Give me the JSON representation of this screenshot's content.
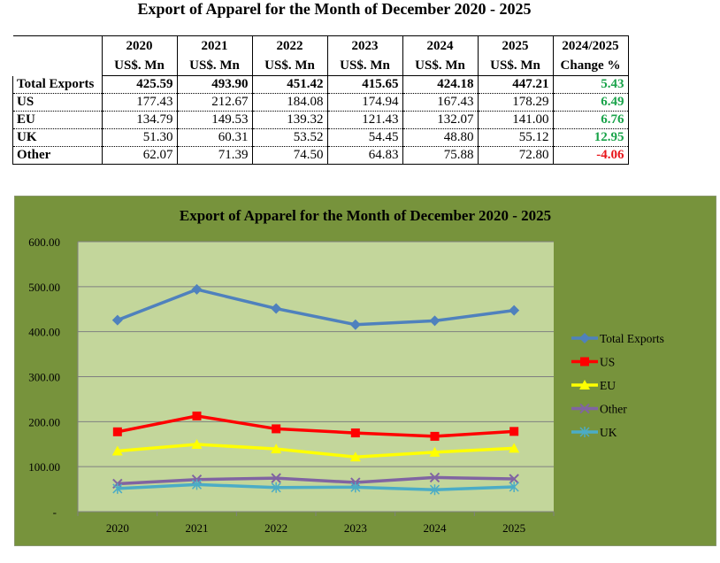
{
  "title": "Export of Apparel for the Month of December 2020 - 2025",
  "table": {
    "years": [
      "2020",
      "2021",
      "2022",
      "2023",
      "2024",
      "2025"
    ],
    "unit": "US$. Mn",
    "change_header": [
      "2024/2025",
      "Change %"
    ],
    "rows": [
      {
        "label": "Total Exports",
        "values": [
          "425.59",
          "493.90",
          "451.42",
          "415.65",
          "424.18",
          "447.21"
        ],
        "change": "5.43"
      },
      {
        "label": "US",
        "values": [
          "177.43",
          "212.67",
          "184.08",
          "174.94",
          "167.43",
          "178.29"
        ],
        "change": "6.49"
      },
      {
        "label": "EU",
        "values": [
          "134.79",
          "149.53",
          "139.32",
          "121.43",
          "132.07",
          "141.00"
        ],
        "change": "6.76"
      },
      {
        "label": "UK",
        "values": [
          "51.30",
          "60.31",
          "53.52",
          "54.45",
          "48.80",
          "55.12"
        ],
        "change": "12.95"
      },
      {
        "label": "Other",
        "values": [
          "62.07",
          "71.39",
          "74.50",
          "64.83",
          "75.88",
          "72.80"
        ],
        "change": "-4.06"
      }
    ]
  },
  "chart_data": {
    "type": "line",
    "title": "Export of Apparel for the Month of December 2020 - 2025",
    "categories": [
      "2020",
      "2021",
      "2022",
      "2023",
      "2024",
      "2025"
    ],
    "ylim": [
      0,
      600
    ],
    "yticks": [
      "-",
      "100.00",
      "200.00",
      "300.00",
      "400.00",
      "500.00",
      "600.00"
    ],
    "legend_position": "right",
    "series": [
      {
        "name": "Total Exports",
        "color": "#4f81bd",
        "marker": "diamond",
        "values": [
          425.59,
          493.9,
          451.42,
          415.65,
          424.18,
          447.21
        ]
      },
      {
        "name": "US",
        "color": "#ff0000",
        "marker": "square",
        "values": [
          177.43,
          212.67,
          184.08,
          174.94,
          167.43,
          178.29
        ]
      },
      {
        "name": "EU",
        "color": "#ffff00",
        "marker": "triangle",
        "values": [
          134.79,
          149.53,
          139.32,
          121.43,
          132.07,
          141.0
        ]
      },
      {
        "name": "Other",
        "color": "#8064a2",
        "marker": "x",
        "values": [
          62.07,
          71.39,
          74.5,
          64.83,
          75.88,
          72.8
        ]
      },
      {
        "name": "UK",
        "color": "#4bacc6",
        "marker": "star",
        "values": [
          51.3,
          60.31,
          53.52,
          54.45,
          48.8,
          55.12
        ]
      }
    ]
  }
}
